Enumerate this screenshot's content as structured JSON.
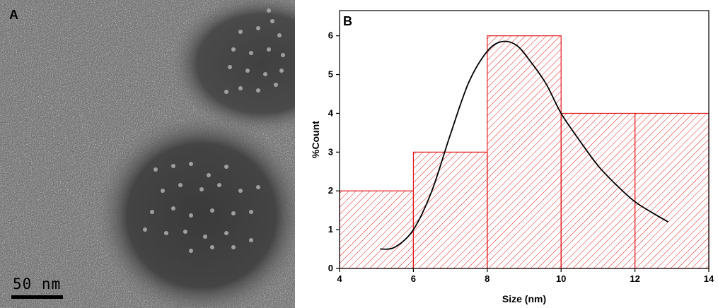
{
  "panel_a": {
    "label": "A",
    "scale_bar_text": "50 nm"
  },
  "panel_b": {
    "label": "B"
  },
  "chart_data": {
    "type": "bar",
    "bins": [
      {
        "from": 4,
        "to": 6,
        "value": 2
      },
      {
        "from": 6,
        "to": 8,
        "value": 3
      },
      {
        "from": 8,
        "to": 10,
        "value": 6
      },
      {
        "from": 10,
        "to": 12,
        "value": 4
      },
      {
        "from": 12,
        "to": 14,
        "value": 4
      }
    ],
    "fit_curve": {
      "x": [
        5.1,
        5.5,
        6.0,
        6.5,
        7.0,
        7.5,
        8.0,
        8.4,
        8.8,
        9.2,
        9.6,
        10.0,
        10.5,
        11.0,
        11.5,
        12.0,
        12.5,
        12.9
      ],
      "y": [
        0.5,
        0.55,
        1.0,
        2.0,
        3.45,
        4.8,
        5.6,
        5.85,
        5.75,
        5.3,
        4.75,
        4.0,
        3.3,
        2.65,
        2.15,
        1.72,
        1.42,
        1.2
      ]
    },
    "xlabel": "Size (nm)",
    "ylabel": "%Count",
    "xlim": [
      4,
      14
    ],
    "ylim": [
      0,
      6.65
    ],
    "xticks": [
      "4",
      "6",
      "8",
      "10",
      "12",
      "14"
    ],
    "yticks": [
      "0",
      "1",
      "2",
      "3",
      "4",
      "5",
      "6"
    ],
    "bar_color": "#e31a1c",
    "curve_color": "#000000",
    "grid": false
  }
}
